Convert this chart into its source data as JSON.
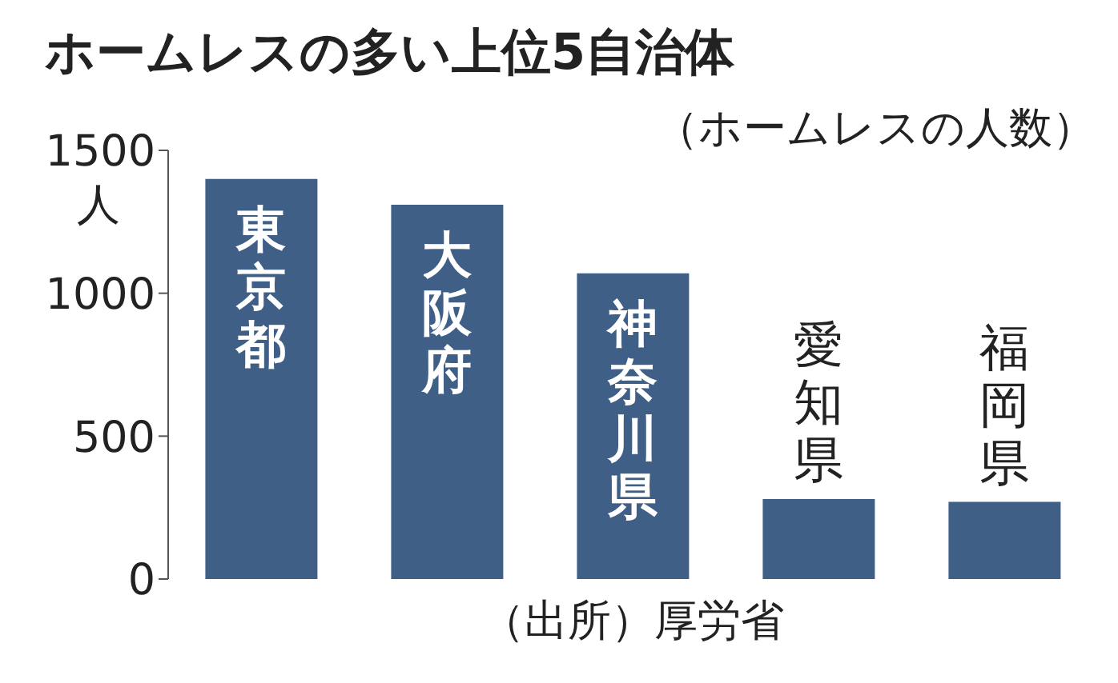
{
  "chart_data": {
    "type": "bar",
    "title": "ホームレスの多い上位5自治体",
    "subtitle": "（ホームレスの人数）",
    "ylabel": "人",
    "annotations": [
      "（出所）厚労省"
    ],
    "categories": [
      "東京都",
      "大阪府",
      "神奈川県",
      "愛知県",
      "福岡県"
    ],
    "values": [
      1400,
      1310,
      1070,
      280,
      270
    ],
    "color": "#3f5f86",
    "ylim": [
      0,
      1500
    ],
    "yticks": [
      0,
      500,
      1000,
      1500
    ]
  }
}
